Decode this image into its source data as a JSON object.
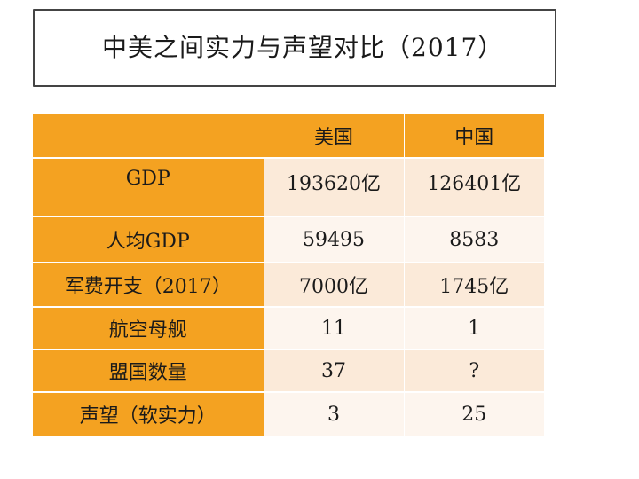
{
  "title": "中美之间实力与声望对比（2017）",
  "table": {
    "columns": [
      "",
      "美国",
      "中国"
    ],
    "rows": [
      {
        "label": "GDP",
        "us": "193620亿",
        "cn": "126401亿"
      },
      {
        "label": "人均GDP",
        "us": "59495",
        "cn": "8583"
      },
      {
        "label": "军费开支（2017）",
        "us": "7000亿",
        "cn": "1745亿"
      },
      {
        "label": "航空母舰",
        "us": "11",
        "cn": "1"
      },
      {
        "label": "盟国数量",
        "us": "37",
        "cn": "?"
      },
      {
        "label": "声望（软实力）",
        "us": "3",
        "cn": "25"
      }
    ]
  },
  "colors": {
    "header_orange": "#f4a221",
    "row_dark": "#fbead9",
    "row_light": "#fdf5ee",
    "title_border": "#444444"
  }
}
